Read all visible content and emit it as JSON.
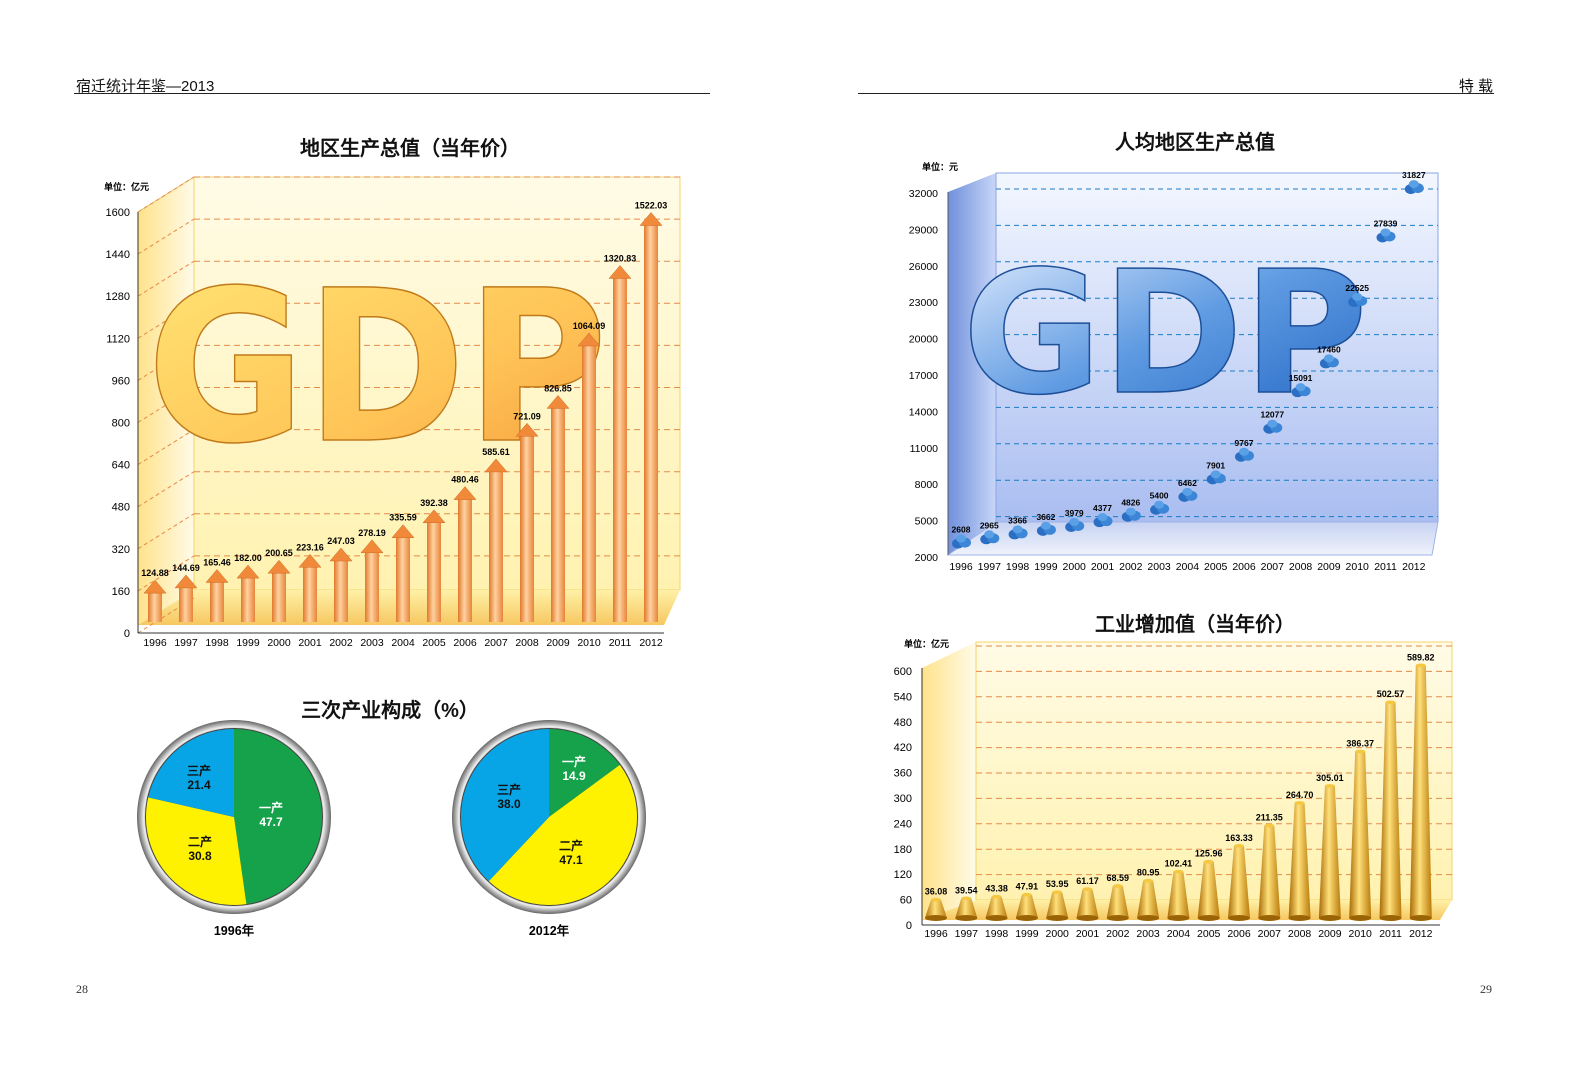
{
  "header": {
    "left_title": "宿迁统计年鉴—2013",
    "right_title": "特  载",
    "left_page": "28",
    "right_page": "29"
  },
  "charts_text": {
    "gdp_title": "地区生产总值（当年价）",
    "gdp_unit": "单位：亿元",
    "per_capita_title": "人均地区生产总值",
    "per_capita_unit": "单位：元",
    "industry_title": "工业增加值（当年价）",
    "industry_unit": "单位：亿元",
    "structure_title": "三次产业构成（%）",
    "gdp_watermark": "GDP"
  },
  "colors": {
    "orange": "#f39a4e",
    "blue": "#2f7fce",
    "gold": "#c98a12",
    "pie_green": "#16a24a",
    "pie_yellow": "#fff200",
    "pie_blue": "#08a5e6"
  },
  "chart_data": [
    {
      "id": "gdp",
      "type": "bar",
      "title": "地区生产总值（当年价）",
      "unit": "单位：亿元",
      "categories": [
        "1996",
        "1997",
        "1998",
        "1999",
        "2000",
        "2001",
        "2002",
        "2003",
        "2004",
        "2005",
        "2006",
        "2007",
        "2008",
        "2009",
        "2010",
        "2011",
        "2012"
      ],
      "values": [
        124.88,
        144.69,
        165.46,
        182.0,
        200.65,
        223.16,
        247.03,
        278.19,
        335.59,
        392.38,
        480.46,
        585.61,
        721.09,
        826.85,
        1064.09,
        1320.83,
        1522.03
      ],
      "labels": [
        "124.88",
        "144.69",
        "165.46",
        "182.00",
        "200.65",
        "223.16",
        "247.03",
        "278.19",
        "335.59",
        "392.38",
        "480.46",
        "585.61",
        "721.09",
        "826.85",
        "1064.09",
        "1320.83",
        "1522.03"
      ],
      "yticks": [
        0,
        160,
        320,
        480,
        640,
        800,
        960,
        1120,
        1280,
        1440,
        1600
      ],
      "ylim": [
        0,
        1600
      ],
      "grid": true
    },
    {
      "id": "per_capita",
      "type": "scatter",
      "title": "人均地区生产总值",
      "unit": "单位：元",
      "categories": [
        "1996",
        "1997",
        "1998",
        "1999",
        "2000",
        "2001",
        "2002",
        "2003",
        "2004",
        "2005",
        "2006",
        "2007",
        "2008",
        "2009",
        "2010",
        "2011",
        "2012"
      ],
      "values": [
        2608,
        2965,
        3366,
        3662,
        3979,
        4377,
        4826,
        5400,
        6462,
        7901,
        9767,
        12077,
        15091,
        17460,
        22525,
        27839,
        31827
      ],
      "labels": [
        "2608",
        "2965",
        "3366",
        "3662",
        "3979",
        "4377",
        "4826",
        "5400",
        "6462",
        "7901",
        "9767",
        "12077",
        "15091",
        "17460",
        "22525",
        "27839",
        "31827"
      ],
      "yticks": [
        2000,
        5000,
        8000,
        11000,
        14000,
        17000,
        20000,
        23000,
        26000,
        29000,
        32000
      ],
      "ylim": [
        2000,
        32000
      ],
      "grid": true
    },
    {
      "id": "industry",
      "type": "bar",
      "title": "工业增加值（当年价）",
      "unit": "单位：亿元",
      "categories": [
        "1996",
        "1997",
        "1998",
        "1999",
        "2000",
        "2001",
        "2002",
        "2003",
        "2004",
        "2005",
        "2006",
        "2007",
        "2008",
        "2009",
        "2010",
        "2011",
        "2012"
      ],
      "values": [
        36.08,
        39.54,
        43.38,
        47.91,
        53.95,
        61.17,
        68.59,
        80.95,
        102.41,
        125.96,
        163.33,
        211.35,
        264.7,
        305.01,
        386.37,
        502.57,
        589.82
      ],
      "labels": [
        "36.08",
        "39.54",
        "43.38",
        "47.91",
        "53.95",
        "61.17",
        "68.59",
        "80.95",
        "102.41",
        "125.96",
        "163.33",
        "211.35",
        "264.70",
        "305.01",
        "386.37",
        "502.57",
        "589.82"
      ],
      "yticks": [
        0,
        60,
        120,
        180,
        240,
        300,
        360,
        420,
        480,
        540,
        600
      ],
      "ylim": [
        0,
        600
      ],
      "grid": true
    },
    {
      "id": "pie_1996",
      "type": "pie",
      "caption": "1996年",
      "slices": [
        {
          "name": "一产",
          "value": 47.7,
          "label": "47.7",
          "color": "#16a24a"
        },
        {
          "name": "二产",
          "value": 30.8,
          "label": "30.8",
          "color": "#fff200"
        },
        {
          "name": "三产",
          "value": 21.4,
          "label": "21.4",
          "color": "#08a5e6"
        }
      ]
    },
    {
      "id": "pie_2012",
      "type": "pie",
      "caption": "2012年",
      "slices": [
        {
          "name": "一产",
          "value": 14.9,
          "label": "14.9",
          "color": "#16a24a"
        },
        {
          "name": "二产",
          "value": 47.1,
          "label": "47.1",
          "color": "#fff200"
        },
        {
          "name": "三产",
          "value": 38.0,
          "label": "38.0",
          "color": "#08a5e6"
        }
      ]
    }
  ]
}
